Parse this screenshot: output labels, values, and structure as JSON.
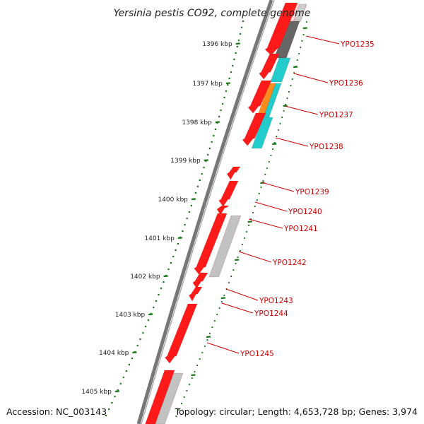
{
  "title": "Yersinia pestis CO92, complete genome",
  "footer": {
    "accession": "Accession: NC_003143",
    "summary": "Topology: circular; Length: 4,653,728 bp; Genes: 3,974"
  },
  "colors": {
    "gene_red": "#ff1a1a",
    "gene_red_dark": "#c80000",
    "gray": "#c2c2c2",
    "dark_gray": "#666666",
    "cyan": "#22cccc",
    "orange": "#ff8c1a",
    "tick_green": "#1a7a1a",
    "label_red": "#cc0000",
    "backbone": "#777777"
  },
  "ticks": [
    "1396 kbp",
    "1397 kbp",
    "1398 kbp",
    "1399 kbp",
    "1400 kbp",
    "1401 kbp",
    "1402 kbp",
    "1403 kbp",
    "1404 kbp",
    "1405 kbp"
  ],
  "genes": [
    "YPO1235",
    "YPO1236",
    "YPO1237",
    "YPO1238",
    "YPO1239",
    "YPO1240",
    "YPO1241",
    "YPO1242",
    "YPO1243",
    "YPO1244",
    "YPO1245"
  ]
}
